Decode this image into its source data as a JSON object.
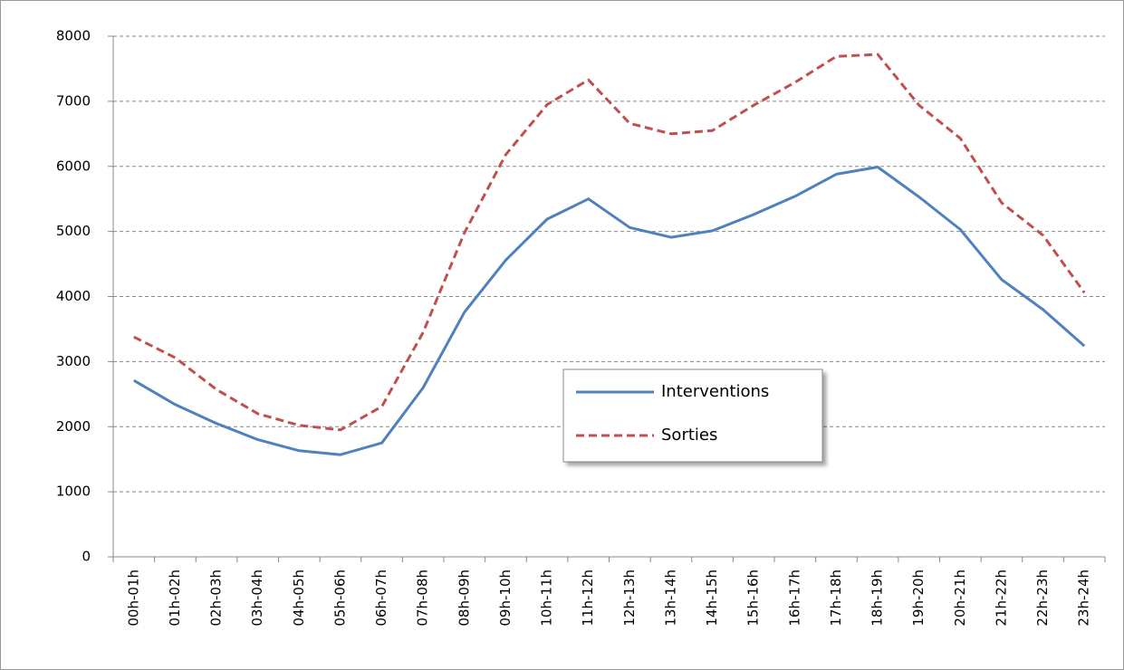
{
  "chart_data": {
    "type": "line",
    "categories": [
      "00h-01h",
      "01h-02h",
      "02h-03h",
      "03h-04h",
      "04h-05h",
      "05h-06h",
      "06h-07h",
      "07h-08h",
      "08h-09h",
      "09h-10h",
      "10h-11h",
      "11h-12h",
      "12h-13h",
      "13h-14h",
      "14h-15h",
      "15h-16h",
      "16h-17h",
      "17h-18h",
      "18h-19h",
      "19h-20h",
      "20h-21h",
      "21h-22h",
      "22h-23h",
      "23h-24h"
    ],
    "series": [
      {
        "name": "Interventions",
        "color": "#4f81bd",
        "dash": false,
        "values": [
          2710,
          2340,
          2050,
          1800,
          1630,
          1570,
          1750,
          2600,
          3760,
          4560,
          5190,
          5500,
          5060,
          4910,
          5010,
          5260,
          5540,
          5880,
          5990,
          5530,
          5030,
          4260,
          3800,
          3240
        ]
      },
      {
        "name": "Sorties",
        "color": "#c0504d",
        "dash": true,
        "values": [
          3380,
          3060,
          2570,
          2200,
          2020,
          1950,
          2310,
          3450,
          4980,
          6180,
          6950,
          7330,
          6660,
          6500,
          6550,
          6940,
          7290,
          7690,
          7720,
          6940,
          6430,
          5440,
          4940,
          4060
        ]
      }
    ],
    "ylim": [
      0,
      8000
    ],
    "yticks": [
      0,
      1000,
      2000,
      3000,
      4000,
      5000,
      6000,
      7000,
      8000
    ],
    "grid": true
  }
}
